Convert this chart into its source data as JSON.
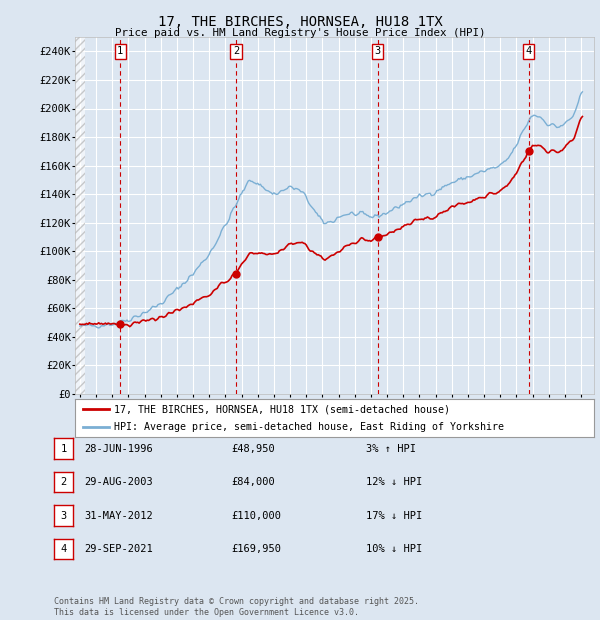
{
  "title": "17, THE BIRCHES, HORNSEA, HU18 1TX",
  "subtitle": "Price paid vs. HM Land Registry's House Price Index (HPI)",
  "ytick_vals": [
    0,
    20000,
    40000,
    60000,
    80000,
    100000,
    120000,
    140000,
    160000,
    180000,
    200000,
    220000,
    240000
  ],
  "ylim": [
    0,
    250000
  ],
  "xlim_start": 1993.7,
  "xlim_end": 2025.8,
  "background_color": "#dce6f1",
  "plot_bg_color": "#dce6f1",
  "grid_color": "#ffffff",
  "hpi_color": "#7bafd4",
  "price_color": "#cc0000",
  "vline_color": "#cc0000",
  "legend_label_price": "17, THE BIRCHES, HORNSEA, HU18 1TX (semi-detached house)",
  "legend_label_hpi": "HPI: Average price, semi-detached house, East Riding of Yorkshire",
  "transactions": [
    {
      "num": 1,
      "date": "28-JUN-1996",
      "price": 48950,
      "pct": "3%",
      "dir": "↑",
      "year": 1996.5
    },
    {
      "num": 2,
      "date": "29-AUG-2003",
      "price": 84000,
      "pct": "12%",
      "dir": "↓",
      "year": 2003.67
    },
    {
      "num": 3,
      "date": "31-MAY-2012",
      "price": 110000,
      "pct": "17%",
      "dir": "↓",
      "year": 2012.42
    },
    {
      "num": 4,
      "date": "29-SEP-2021",
      "price": 169950,
      "pct": "10%",
      "dir": "↓",
      "year": 2021.75
    }
  ],
  "footer": "Contains HM Land Registry data © Crown copyright and database right 2025.\nThis data is licensed under the Open Government Licence v3.0."
}
